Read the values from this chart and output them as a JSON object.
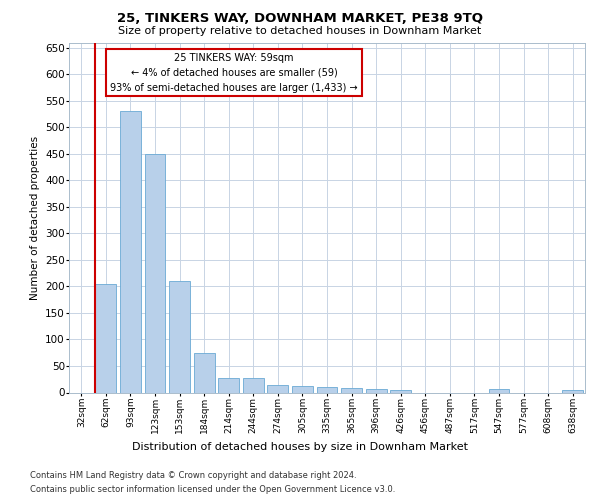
{
  "title1": "25, TINKERS WAY, DOWNHAM MARKET, PE38 9TQ",
  "title2": "Size of property relative to detached houses in Downham Market",
  "xlabel": "Distribution of detached houses by size in Downham Market",
  "ylabel": "Number of detached properties",
  "footnote1": "Contains HM Land Registry data © Crown copyright and database right 2024.",
  "footnote2": "Contains public sector information licensed under the Open Government Licence v3.0.",
  "annotation_line1": "25 TINKERS WAY: 59sqm",
  "annotation_line2": "← 4% of detached houses are smaller (59)",
  "annotation_line3": "93% of semi-detached houses are larger (1,433) →",
  "bar_color": "#b8d0ea",
  "bar_edge_color": "#6aaad4",
  "highlight_line_color": "#cc0000",
  "annotation_box_color": "#ffffff",
  "annotation_box_edge_color": "#cc0000",
  "background_color": "#ffffff",
  "grid_color": "#c8d4e4",
  "categories": [
    "32sqm",
    "62sqm",
    "93sqm",
    "123sqm",
    "153sqm",
    "184sqm",
    "214sqm",
    "244sqm",
    "274sqm",
    "305sqm",
    "335sqm",
    "365sqm",
    "396sqm",
    "426sqm",
    "456sqm",
    "487sqm",
    "517sqm",
    "547sqm",
    "577sqm",
    "608sqm",
    "638sqm"
  ],
  "values": [
    0,
    205,
    530,
    450,
    210,
    75,
    28,
    28,
    15,
    13,
    10,
    9,
    7,
    5,
    0,
    0,
    0,
    6,
    0,
    0,
    5
  ],
  "highlight_index": 1,
  "ylim": [
    0,
    660
  ],
  "yticks": [
    0,
    50,
    100,
    150,
    200,
    250,
    300,
    350,
    400,
    450,
    500,
    550,
    600,
    650
  ]
}
